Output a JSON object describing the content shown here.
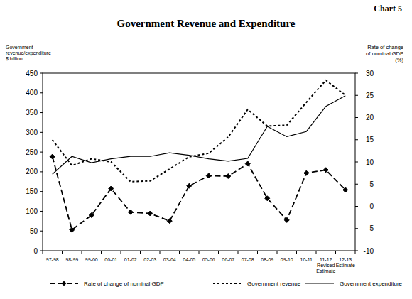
{
  "chart_data": {
    "type": "line",
    "title": "Government Revenue and Expenditure",
    "annotations": [
      "Chart 5"
    ],
    "y_label": "Government\nrevenue/expenditure\n$ billion",
    "y2_label": "Rate of change\nof nominal GDP\n(%)",
    "categories": [
      "97-98",
      "98-99",
      "99-00",
      "00-01",
      "01-02",
      "02-03",
      "03-04",
      "04-05",
      "05-06",
      "06-07",
      "07-08",
      "08-09",
      "09-10",
      "10-11",
      "11-12\nRevised\nEstimate",
      "12-13\nEstimate"
    ],
    "ylim": [
      0,
      450
    ],
    "yticks": [
      0,
      50,
      100,
      150,
      200,
      250,
      300,
      350,
      400,
      450
    ],
    "y2lim": [
      -10,
      30
    ],
    "y2ticks": [
      -10,
      -5,
      0,
      5,
      10,
      15,
      20,
      25,
      30
    ],
    "grid": false,
    "legend": "bottom",
    "series": [
      {
        "name": "Rate of change of nominal GDP",
        "color": "#000000",
        "axis": "y2",
        "marker": "diamond",
        "line_style": "dashed",
        "values": [
          11.2,
          -5.3,
          -2.0,
          4.0,
          -1.3,
          -1.6,
          -3.3,
          4.6,
          6.9,
          6.8,
          9.6,
          1.8,
          -3.1,
          7.5,
          8.2,
          3.7
        ]
      },
      {
        "name": "Government revenue",
        "color": "#000000",
        "marker": "none",
        "line_style": "dotted",
        "values": [
          281,
          216,
          233,
          225,
          175,
          177,
          207,
          238,
          247,
          288,
          358,
          316,
          318,
          376,
          432,
          394
        ]
      },
      {
        "name": "Government expenditure",
        "color": "#000000",
        "marker": "none",
        "line_style": "solid",
        "values": [
          194,
          239,
          223,
          233,
          239,
          239,
          248,
          242,
          233,
          227,
          234,
          315,
          289,
          302,
          366,
          393
        ]
      }
    ]
  }
}
